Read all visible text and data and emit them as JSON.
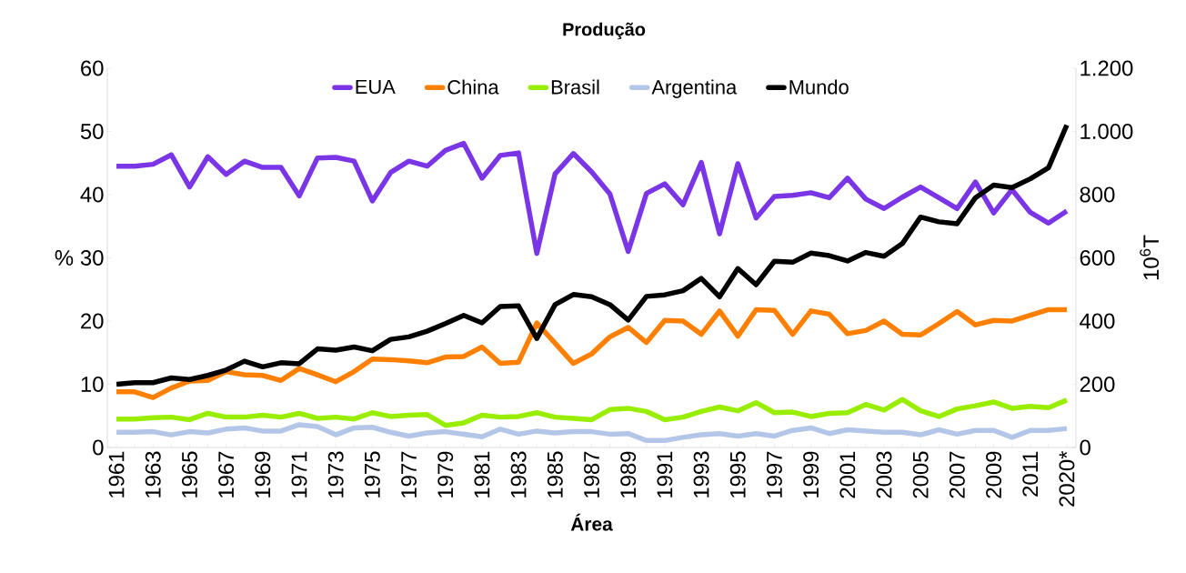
{
  "chart_data": {
    "type": "line",
    "title": "Produção",
    "xlabel": "Área",
    "ylabel": "%",
    "y2label": "10$^{6}$T",
    "categories": [
      "1961",
      null,
      "1963",
      null,
      "1965",
      null,
      "1967",
      null,
      "1969",
      null,
      "1971",
      null,
      "1973",
      null,
      "1975",
      null,
      "1977",
      null,
      "1979",
      null,
      "1981",
      null,
      "1983",
      null,
      "1985",
      null,
      "1987",
      null,
      "1989",
      null,
      "1991",
      null,
      "1993",
      null,
      "1995",
      null,
      "1997",
      null,
      "1999",
      null,
      "2001",
      null,
      "2003",
      null,
      "2005",
      null,
      "2007",
      null,
      "2009",
      null,
      "2011",
      null,
      "2020*"
    ],
    "series": [
      {
        "name": "EUA",
        "color": "#7a35e6",
        "values": [
          44.5,
          44.5,
          44.8,
          46.3,
          41.2,
          46.0,
          43.2,
          45.3,
          44.3,
          44.3,
          39.8,
          45.8,
          45.9,
          45.3,
          39.0,
          43.5,
          45.3,
          44.5,
          47.0,
          48.1,
          42.6,
          46.2,
          46.6,
          30.7,
          43.3,
          46.5,
          43.6,
          40.1,
          31.0,
          40.2,
          41.7,
          38.4,
          45.1,
          33.8,
          44.9,
          36.3,
          39.7,
          39.9,
          40.3,
          39.5,
          42.6,
          39.3,
          37.8,
          39.6,
          41.2,
          39.5,
          37.8,
          42.0,
          37.1,
          40.8,
          37.2,
          35.5,
          37.4
        ]
      },
      {
        "name": "China",
        "color": "#ff8000",
        "values": [
          8.8,
          8.8,
          7.9,
          9.4,
          10.5,
          10.6,
          12.0,
          11.5,
          11.4,
          10.6,
          12.5,
          11.5,
          10.4,
          12.0,
          14.0,
          13.9,
          13.7,
          13.4,
          14.3,
          14.4,
          15.9,
          13.3,
          13.5,
          19.7,
          16.5,
          13.3,
          14.8,
          17.5,
          19.0,
          16.6,
          20.1,
          20.0,
          17.9,
          21.6,
          17.6,
          21.8,
          21.7,
          17.9,
          21.6,
          21.1,
          18.0,
          18.5,
          20.0,
          17.9,
          17.8,
          19.6,
          21.5,
          19.4,
          20.1,
          20.0,
          20.9,
          21.8,
          21.8
        ]
      },
      {
        "name": "Brasil",
        "color": "#99ee00",
        "values": [
          4.5,
          4.5,
          4.7,
          4.8,
          4.4,
          5.4,
          4.8,
          4.8,
          5.1,
          4.8,
          5.4,
          4.6,
          4.8,
          4.5,
          5.5,
          4.9,
          5.1,
          5.2,
          3.5,
          3.9,
          5.1,
          4.8,
          4.9,
          5.5,
          4.8,
          4.6,
          4.4,
          6.0,
          6.2,
          5.7,
          4.4,
          4.8,
          5.7,
          6.4,
          5.8,
          7.1,
          5.5,
          5.6,
          4.9,
          5.4,
          5.5,
          6.8,
          5.9,
          7.6,
          5.8,
          4.9,
          6.1,
          6.6,
          7.2,
          6.2,
          6.5,
          6.3,
          7.5
        ]
      },
      {
        "name": "Argentina",
        "color": "#b4c6e7",
        "values": [
          2.4,
          2.4,
          2.5,
          2.0,
          2.5,
          2.3,
          2.9,
          3.1,
          2.6,
          2.6,
          3.6,
          3.3,
          2.0,
          3.1,
          3.2,
          2.4,
          1.8,
          2.3,
          2.5,
          2.1,
          1.7,
          2.9,
          2.1,
          2.6,
          2.3,
          2.5,
          2.5,
          2.1,
          2.2,
          1.1,
          1.1,
          1.6,
          2.0,
          2.2,
          1.8,
          2.2,
          1.8,
          2.7,
          3.1,
          2.2,
          2.8,
          2.6,
          2.4,
          2.4,
          2.0,
          2.8,
          2.1,
          2.7,
          2.7,
          1.6,
          2.7,
          2.7,
          3.0
        ]
      },
      {
        "name": "Mundo",
        "color": "#000000",
        "axis": "y2",
        "values": [
          200,
          205,
          205,
          220,
          215,
          228,
          245,
          273,
          255,
          268,
          265,
          312,
          308,
          318,
          306,
          342,
          350,
          368,
          392,
          418,
          394,
          446,
          448,
          345,
          452,
          484,
          477,
          452,
          403,
          478,
          483,
          496,
          535,
          477,
          566,
          515,
          589,
          586,
          615,
          607,
          590,
          617,
          605,
          645,
          729,
          714,
          708,
          790,
          830,
          822,
          850,
          885,
          1020
        ]
      }
    ],
    "ylim": [
      0,
      60
    ],
    "yticks": [
      0,
      10,
      20,
      30,
      40,
      50,
      60
    ],
    "y2lim": [
      0,
      1200
    ],
    "y2ticks": [
      0,
      200,
      400,
      600,
      800,
      {
        "value": 1000,
        "label": "1.000"
      },
      {
        "value": 1200,
        "label": "1.200"
      }
    ],
    "legend": "top",
    "grid": false,
    "line_style": "solid",
    "marker": "none"
  }
}
